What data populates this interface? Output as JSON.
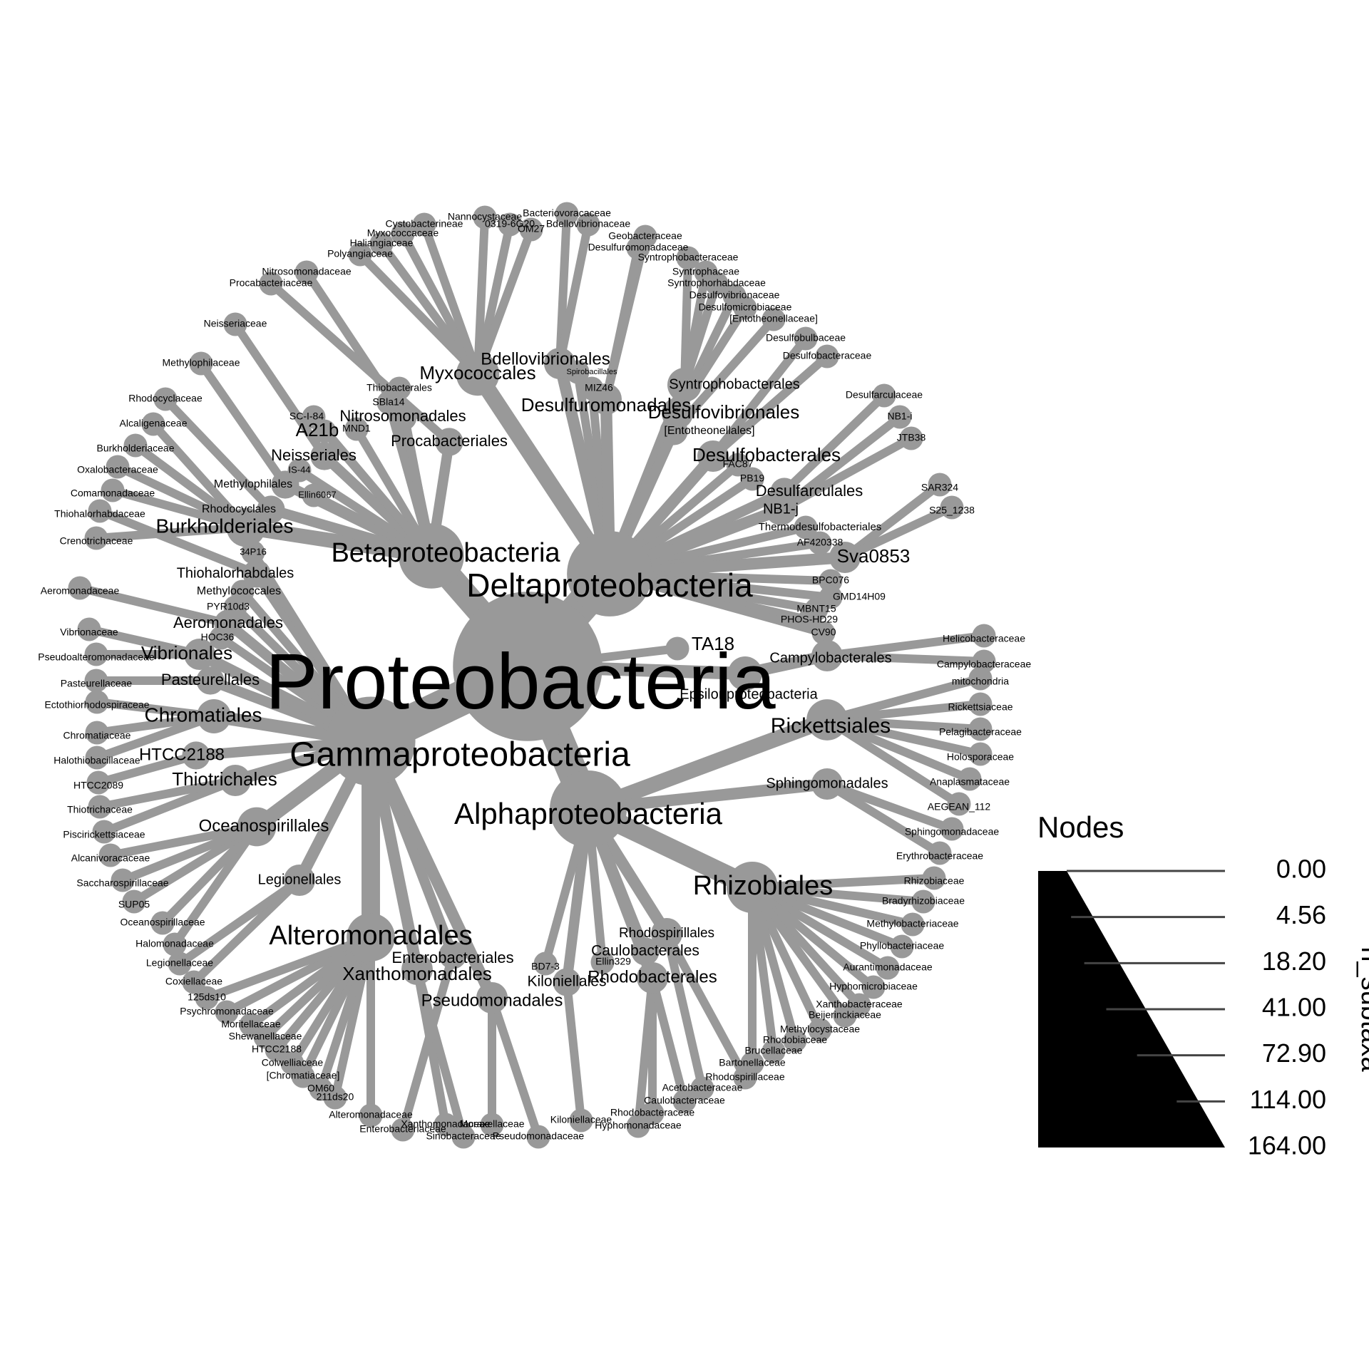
{
  "diagram": {
    "edge_color": "#999999",
    "node_color": "#999999",
    "root": {
      "name": "Proteobacteria",
      "n_subtaxa": 164,
      "children": [
        {
          "name": "Alphaproteobacteria",
          "children": [
            {
              "name": "Rickettsiales",
              "children": [
                {
                  "name": "mitochondria"
                },
                {
                  "name": "Rickettsiaceae"
                },
                {
                  "name": "Pelagibacteraceae"
                },
                {
                  "name": "Holosporaceae"
                },
                {
                  "name": "Anaplasmataceae"
                },
                {
                  "name": "AEGEAN_112"
                }
              ]
            },
            {
              "name": "Sphingomonadales",
              "children": [
                {
                  "name": "Sphingomonadaceae"
                },
                {
                  "name": "Erythrobacteraceae"
                }
              ]
            },
            {
              "name": "Rhizobiales",
              "children": [
                {
                  "name": "Rhizobiaceae"
                },
                {
                  "name": "Bradyrhizobiaceae"
                },
                {
                  "name": "Methylobacteriaceae"
                },
                {
                  "name": "Phyllobacteriaceae"
                },
                {
                  "name": "Aurantimonadaceae"
                },
                {
                  "name": "Hyphomicrobiaceae"
                },
                {
                  "name": "Xanthobacteraceae"
                },
                {
                  "name": "Beijerinckiaceae"
                },
                {
                  "name": "Methylocystaceae"
                },
                {
                  "name": "Rhodobiaceae"
                },
                {
                  "name": "Brucellaceae"
                },
                {
                  "name": "Bartonellaceae"
                }
              ]
            },
            {
              "name": "Rhodospirillales",
              "children": [
                {
                  "name": "Rhodospirillaceae"
                },
                {
                  "name": "Acetobacteraceae"
                }
              ]
            },
            {
              "name": "Caulobacterales",
              "children": [
                {
                  "name": "Caulobacteraceae"
                }
              ]
            },
            {
              "name": "Rhodobacterales",
              "children": [
                {
                  "name": "Rhodobacteraceae"
                },
                {
                  "name": "Hyphomonadaceae"
                }
              ]
            },
            {
              "name": "Ellin329"
            },
            {
              "name": "Kiloniellales",
              "children": [
                {
                  "name": "Kiloniellaceae"
                }
              ]
            },
            {
              "name": "BD7-3"
            }
          ]
        },
        {
          "name": "Gammaproteobacteria",
          "children": [
            {
              "name": "Pseudomonadales",
              "children": [
                {
                  "name": "Pseudomonadaceae"
                },
                {
                  "name": "Moraxellaceae"
                }
              ]
            },
            {
              "name": "Xanthomonadales",
              "children": [
                {
                  "name": "Sinobacteraceae"
                },
                {
                  "name": "Xanthomonadaceae"
                }
              ]
            },
            {
              "name": "Enterobacteriales",
              "children": [
                {
                  "name": "Enterobacteriaceae"
                }
              ]
            },
            {
              "name": "Alteromonadales",
              "children": [
                {
                  "name": "Alteromonadaceae"
                },
                {
                  "name": "211ds20"
                },
                {
                  "name": "OM60"
                },
                {
                  "name": "[Chromatiaceae]"
                },
                {
                  "name": "Colwelliaceae"
                },
                {
                  "name": "HTCC2188"
                },
                {
                  "name": "Shewanellaceae"
                },
                {
                  "name": "Moritellaceae"
                },
                {
                  "name": "Psychromonadaceae"
                },
                {
                  "name": "125ds10"
                }
              ]
            },
            {
              "name": "Legionellales",
              "children": [
                {
                  "name": "Coxiellaceae"
                },
                {
                  "name": "Legionellaceae"
                }
              ]
            },
            {
              "name": "Oceanospirillales",
              "children": [
                {
                  "name": "Halomonadaceae"
                },
                {
                  "name": "Oceanospirillaceae"
                },
                {
                  "name": "SUP05"
                },
                {
                  "name": "Saccharospirillaceae"
                },
                {
                  "name": "Alcanivoracaceae"
                }
              ]
            },
            {
              "name": "Thiotrichales",
              "children": [
                {
                  "name": "Piscirickettsiaceae"
                },
                {
                  "name": "Thiotrichaceae"
                }
              ]
            },
            {
              "name": "HTCC2188",
              "children": [
                {
                  "name": "HTCC2089"
                }
              ]
            },
            {
              "name": "Chromatiales",
              "children": [
                {
                  "name": "Halothiobacillaceae"
                },
                {
                  "name": "Chromatiaceae"
                },
                {
                  "name": "Ectothiorhodospiraceae"
                }
              ]
            },
            {
              "name": "Pasteurellales",
              "children": [
                {
                  "name": "Pasteurellaceae"
                }
              ]
            },
            {
              "name": "Vibrionales",
              "children": [
                {
                  "name": "Pseudoalteromonadaceae"
                },
                {
                  "name": "Vibrionaceae"
                }
              ]
            },
            {
              "name": "HOC36"
            },
            {
              "name": "Aeromonadales",
              "children": [
                {
                  "name": "Aeromonadaceae"
                }
              ]
            },
            {
              "name": "PYR10d3"
            },
            {
              "name": "Methylococcales"
            },
            {
              "name": "Thiohalorhabdales",
              "children": [
                {
                  "name": "Thiohalorhabdaceae"
                }
              ]
            },
            {
              "name": "34P16"
            }
          ]
        },
        {
          "name": "Betaproteobacteria",
          "children": [
            {
              "name": "Burkholderiales",
              "children": [
                {
                  "name": "Crenotrichaceae"
                },
                {
                  "name": "Comamonadaceae"
                },
                {
                  "name": "Oxalobacteraceae"
                },
                {
                  "name": "Burkholderiaceae"
                },
                {
                  "name": "Alcaligenaceae"
                }
              ]
            },
            {
              "name": "Rhodocyclales",
              "children": [
                {
                  "name": "Rhodocyclaceae"
                }
              ]
            },
            {
              "name": "Methylophilales",
              "children": [
                {
                  "name": "Methylophilaceae"
                }
              ]
            },
            {
              "name": "Ellin6067"
            },
            {
              "name": "IS-44"
            },
            {
              "name": "Neisseriales",
              "children": [
                {
                  "name": "Neisseriaceae"
                }
              ]
            },
            {
              "name": "A21b"
            },
            {
              "name": "MND1"
            },
            {
              "name": "SC-I-84"
            },
            {
              "name": "Nitrosomonadales",
              "children": [
                {
                  "name": "Nitrosomonadaceae"
                }
              ]
            },
            {
              "name": "SBla14"
            },
            {
              "name": "Thiobacterales"
            },
            {
              "name": "Procabacteriales",
              "children": [
                {
                  "name": "Procabacteriaceae"
                }
              ]
            }
          ]
        },
        {
          "name": "Deltaproteobacteria",
          "children": [
            {
              "name": "Myxococcales",
              "children": [
                {
                  "name": "Polyangiaceae"
                },
                {
                  "name": "Haliangiaceae"
                },
                {
                  "name": "Myxococcaceae"
                },
                {
                  "name": "Cystobacterineae"
                },
                {
                  "name": "Nannocystaceae"
                },
                {
                  "name": "0319-6G20"
                },
                {
                  "name": "OM27"
                }
              ]
            },
            {
              "name": "Bdellovibrionales",
              "children": [
                {
                  "name": "Bacteriovoracaceae"
                },
                {
                  "name": "Bdellovibrionaceae"
                }
              ]
            },
            {
              "name": "Spirobacillales"
            },
            {
              "name": "MIZ46"
            },
            {
              "name": "Desulfuromonadales",
              "children": [
                {
                  "name": "Geobacteraceae"
                },
                {
                  "name": "Desulfuromonadaceae"
                }
              ]
            },
            {
              "name": "Syntrophobacterales",
              "children": [
                {
                  "name": "Syntrophobacteraceae"
                },
                {
                  "name": "Syntrophaceae"
                },
                {
                  "name": "Syntrophorhabdaceae"
                }
              ]
            },
            {
              "name": "Desulfovibrionales",
              "children": [
                {
                  "name": "Desulfovibrionaceae"
                },
                {
                  "name": "Desulfomicrobiaceae"
                }
              ]
            },
            {
              "name": "[Entotheonellales]",
              "children": [
                {
                  "name": "[Entotheonellaceae]"
                }
              ]
            },
            {
              "name": "Desulfobacterales",
              "children": [
                {
                  "name": "Desulfobulbaceae"
                },
                {
                  "name": "Desulfobacteraceae"
                }
              ]
            },
            {
              "name": "FAC87"
            },
            {
              "name": "PB19"
            },
            {
              "name": "Desulfarculales",
              "children": [
                {
                  "name": "Desulfarculaceae"
                }
              ]
            },
            {
              "name": "NB1-j",
              "children": [
                {
                  "name": "NB1-i"
                },
                {
                  "name": "JTB38"
                }
              ]
            },
            {
              "name": "Thermodesulfobacteriales"
            },
            {
              "name": "AF420338"
            },
            {
              "name": "Sva0853",
              "children": [
                {
                  "name": "SAR324"
                },
                {
                  "name": "S25_1238"
                }
              ]
            },
            {
              "name": "BPC076"
            },
            {
              "name": "GMD14H09"
            },
            {
              "name": "MBNT15"
            },
            {
              "name": "PHOS-HD29"
            },
            {
              "name": "CV90"
            }
          ]
        },
        {
          "name": "TA18"
        },
        {
          "name": "Epsilonproteobacteria",
          "children": [
            {
              "name": "Campylobacterales",
              "children": [
                {
                  "name": "Helicobacteraceae"
                },
                {
                  "name": "Campylobacteraceae"
                }
              ]
            }
          ]
        }
      ]
    }
  },
  "legend": {
    "title": "Nodes",
    "axis_label": "n_subtaxa",
    "ticks": [
      "0.00",
      "4.56",
      "18.20",
      "41.00",
      "72.90",
      "114.00",
      "164.00"
    ],
    "fill_color": "#000000"
  }
}
